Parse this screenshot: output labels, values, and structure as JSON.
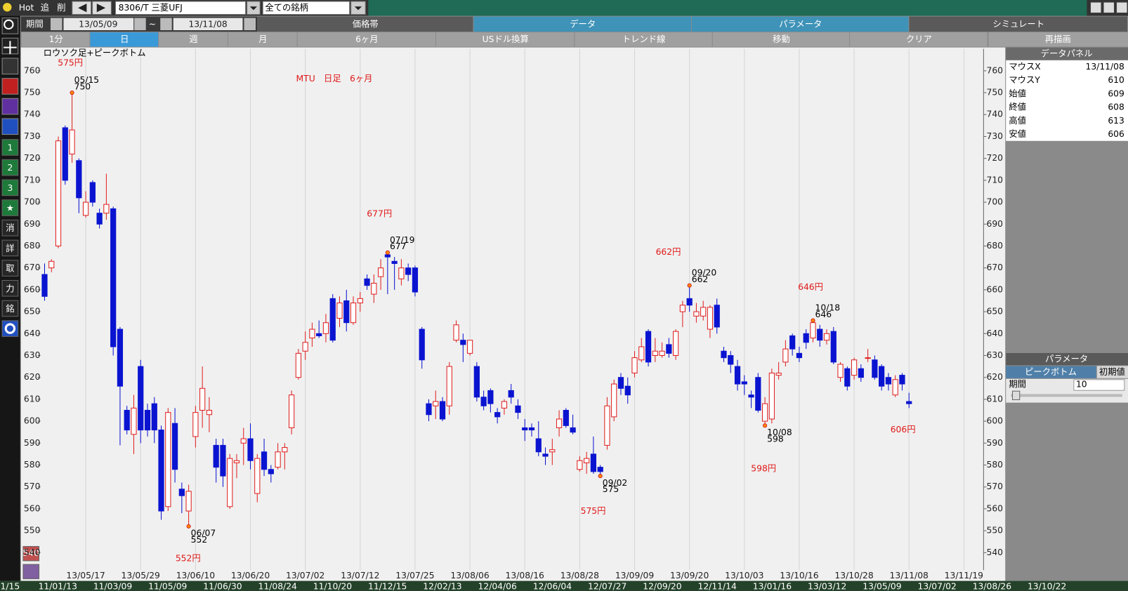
{
  "toolbar": {
    "hot": "Hot",
    "add": "追",
    "del": "削",
    "symbol": "8306/T 三菱UFJ",
    "filter": "全ての銘柄",
    "period_label": "期間",
    "from": "13/05/09",
    "tilde": "~",
    "to": "13/11/08",
    "menu": [
      "価格帯",
      "データ",
      "パラメータ",
      "シミュレート"
    ],
    "menu_active": [
      1,
      2
    ],
    "spans": [
      "1分",
      "日",
      "週",
      "月",
      "6ヶ月",
      "USドル換算",
      "トレンド線",
      "移動",
      "クリア"
    ],
    "spans_active": 1,
    "redraw": "再描画"
  },
  "sidebar": {
    "buttons": [
      "1",
      "2",
      "3",
      "★",
      "消",
      "詳",
      "取",
      "力",
      "銘"
    ],
    "bottom": "540"
  },
  "chart_data": {
    "type": "candlestick",
    "title": "MTU　日足　6ヶ月",
    "subtitle": "ロウソク足+ピークボトム",
    "categories": [
      null,
      null,
      null,
      null,
      null,
      null,
      "13/05/17",
      null,
      null,
      null,
      null,
      null,
      null,
      null,
      "13/05/29",
      null,
      null,
      null,
      null,
      null,
      null,
      null,
      "13/06/10",
      null,
      null,
      null,
      null,
      null,
      null,
      null,
      "13/06/20",
      null,
      null,
      null,
      null,
      null,
      null,
      null,
      "13/07/02",
      null,
      null,
      null,
      null,
      null,
      null,
      null,
      "13/07/12",
      null,
      null,
      null,
      null,
      null,
      null,
      null,
      "13/07/25",
      null,
      null,
      null,
      null,
      null,
      null,
      null,
      "13/08/06",
      null,
      null,
      null,
      null,
      null,
      null,
      null,
      "13/08/16",
      null,
      null,
      null,
      null,
      null,
      null,
      null,
      "13/08/28",
      null,
      null,
      null,
      null,
      null,
      null,
      null,
      "13/09/09",
      null,
      null,
      null,
      null,
      null,
      null,
      null,
      "13/09/20",
      null,
      null,
      null,
      null,
      null,
      null,
      null,
      "13/10/03",
      null,
      null,
      null,
      null,
      null,
      null,
      null,
      "13/10/16",
      null,
      null,
      null,
      null,
      null,
      null,
      null,
      "13/10/28",
      null,
      null,
      null,
      null,
      null,
      null,
      null,
      "13/11/08",
      null,
      null,
      null,
      null,
      null,
      null,
      null,
      "13/11/19"
    ],
    "open": [
      667,
      670,
      680,
      734,
      722,
      719,
      694,
      709,
      695,
      695,
      697,
      642,
      605,
      594,
      625,
      605,
      608,
      596,
      561,
      599,
      569,
      559,
      593,
      605,
      603,
      589,
      589,
      561,
      581,
      590,
      592,
      567,
      586,
      578,
      579,
      586,
      597,
      620,
      632,
      638,
      640,
      640,
      656,
      647,
      655,
      645,
      654,
      665,
      658,
      666,
      676,
      673,
      665,
      670,
      670,
      642,
      608,
      607,
      609,
      607,
      637,
      637,
      631,
      625,
      611,
      614,
      604,
      606,
      614,
      607,
      597,
      597,
      592,
      585,
      586,
      597,
      605,
      597,
      578,
      581,
      585,
      579,
      589,
      602,
      620,
      616,
      622,
      628,
      641,
      630,
      630,
      635,
      630,
      650,
      656,
      648,
      648,
      642,
      653,
      632,
      630,
      625,
      618,
      612,
      620,
      600,
      601,
      621,
      627,
      639,
      631,
      640,
      638,
      642,
      637,
      641,
      620,
      624,
      621,
      624,
      629,
      628,
      625,
      620,
      612,
      621,
      609,
      null,
      null,
      null,
      null,
      null,
      null,
      null,
      null
    ],
    "high": [
      672,
      674,
      730,
      735,
      750,
      720,
      705,
      710,
      697,
      713,
      698,
      643,
      607,
      612,
      628,
      608,
      611,
      598,
      606,
      606,
      572,
      571,
      607,
      625,
      611,
      592,
      592,
      585,
      585,
      597,
      599,
      585,
      592,
      580,
      590,
      590,
      614,
      633,
      641,
      645,
      646,
      649,
      658,
      657,
      660,
      657,
      659,
      667,
      667,
      674,
      677,
      675,
      674,
      672,
      671,
      643,
      610,
      614,
      611,
      627,
      646,
      640,
      637,
      627,
      614,
      615,
      606,
      610,
      617,
      610,
      601,
      599,
      600,
      588,
      592,
      605,
      606,
      603,
      584,
      586,
      593,
      580,
      611,
      619,
      622,
      620,
      632,
      638,
      642,
      638,
      636,
      638,
      642,
      655,
      662,
      654,
      655,
      653,
      656,
      634,
      632,
      628,
      621,
      614,
      622,
      611,
      624,
      627,
      637,
      640,
      634,
      642,
      646,
      644,
      642,
      643,
      627,
      625,
      629,
      626,
      633,
      630,
      626,
      622,
      621,
      622,
      613,
      null,
      null,
      null,
      null,
      null,
      null,
      null,
      null
    ],
    "low": [
      655,
      668,
      679,
      708,
      718,
      695,
      693,
      698,
      688,
      692,
      630,
      589,
      594,
      585,
      590,
      593,
      590,
      555,
      559,
      572,
      558,
      552,
      588,
      597,
      595,
      572,
      570,
      560,
      574,
      580,
      578,
      563,
      575,
      572,
      578,
      578,
      594,
      619,
      628,
      634,
      638,
      636,
      636,
      643,
      641,
      644,
      650,
      660,
      654,
      660,
      658,
      660,
      662,
      664,
      657,
      624,
      600,
      601,
      600,
      603,
      636,
      627,
      630,
      609,
      605,
      604,
      599,
      603,
      608,
      601,
      591,
      593,
      584,
      580,
      580,
      593,
      597,
      594,
      577,
      576,
      576,
      575,
      587,
      600,
      612,
      608,
      620,
      627,
      625,
      627,
      629,
      629,
      628,
      643,
      650,
      645,
      646,
      638,
      640,
      627,
      622,
      614,
      612,
      606,
      604,
      598,
      599,
      619,
      625,
      630,
      627,
      633,
      636,
      634,
      635,
      626,
      618,
      614,
      619,
      618,
      627,
      619,
      614,
      614,
      611,
      614,
      606,
      null,
      null,
      null,
      null,
      null,
      null,
      null,
      null
    ],
    "close": [
      657,
      673,
      728,
      710,
      733,
      702,
      700,
      700,
      690,
      699,
      634,
      616,
      596,
      606,
      596,
      596,
      596,
      559,
      604,
      578,
      566,
      568,
      604,
      615,
      605,
      579,
      575,
      583,
      582,
      592,
      582,
      583,
      578,
      576,
      586,
      588,
      612,
      631,
      636,
      642,
      639,
      645,
      637,
      654,
      645,
      654,
      656,
      662,
      663,
      670,
      675,
      672,
      670,
      667,
      659,
      628,
      603,
      609,
      601,
      625,
      644,
      635,
      637,
      611,
      607,
      608,
      602,
      609,
      611,
      604,
      596,
      596,
      586,
      584,
      587,
      601,
      598,
      595,
      582,
      583,
      577,
      577,
      607,
      617,
      615,
      612,
      629,
      634,
      627,
      632,
      632,
      631,
      641,
      653,
      653,
      650,
      652,
      652,
      643,
      629,
      626,
      617,
      617,
      611,
      605,
      608,
      622,
      622,
      633,
      633,
      629,
      636,
      645,
      637,
      640,
      627,
      626,
      616,
      628,
      620,
      629,
      620,
      616,
      617,
      619,
      617,
      608,
      null,
      null,
      null,
      null,
      null,
      null,
      null,
      null
    ],
    "up_color": "#e02020",
    "down_color": "#0a14d0",
    "xgrid": true,
    "ylim": [
      532,
      770
    ],
    "yticks": [
      540,
      550,
      560,
      570,
      580,
      590,
      600,
      610,
      620,
      630,
      640,
      650,
      660,
      670,
      680,
      690,
      700,
      710,
      720,
      730,
      740,
      750,
      760
    ],
    "peaks": [
      {
        "date": "05/15",
        "value": 750,
        "kind": "high"
      },
      {
        "date": "06/07",
        "value": 552,
        "kind": "low"
      },
      {
        "date": "07/19",
        "value": 677,
        "kind": "high"
      },
      {
        "date": "09/02",
        "value": 575,
        "kind": "low"
      },
      {
        "date": "09/20",
        "value": 662,
        "kind": "high"
      },
      {
        "date": "10/08",
        "value": 598,
        "kind": "low"
      },
      {
        "date": "10/18",
        "value": 646,
        "kind": "high"
      }
    ],
    "annotations": [
      "575円",
      "552円",
      "677円",
      "575円",
      "662円",
      "598円",
      "646円",
      "606円"
    ]
  },
  "data_panel": {
    "title": "データパネル",
    "rows": [
      [
        "マウスX",
        "13/11/08"
      ],
      [
        "マウスY",
        610
      ],
      [
        "始値",
        609
      ],
      [
        "終値",
        608
      ],
      [
        "高値",
        613
      ],
      [
        "安値",
        606
      ]
    ]
  },
  "param_panel": {
    "title": "パラメータ",
    "tabs": [
      "ピークボトム",
      "初期値"
    ],
    "period_label": "期間",
    "period_value": 10
  },
  "overview": {
    "edge": "1/15",
    "labels": [
      "11/01/13",
      "11/03/09",
      "11/05/09",
      "11/06/30",
      "11/08/24",
      "11/10/20",
      "11/12/15",
      "12/02/13",
      "12/04/06",
      "12/06/04",
      "12/07/27",
      "12/09/20",
      "12/11/14",
      "13/01/16",
      "13/03/12",
      "13/05/09",
      "13/07/02",
      "13/08/26",
      "13/10/22"
    ]
  }
}
